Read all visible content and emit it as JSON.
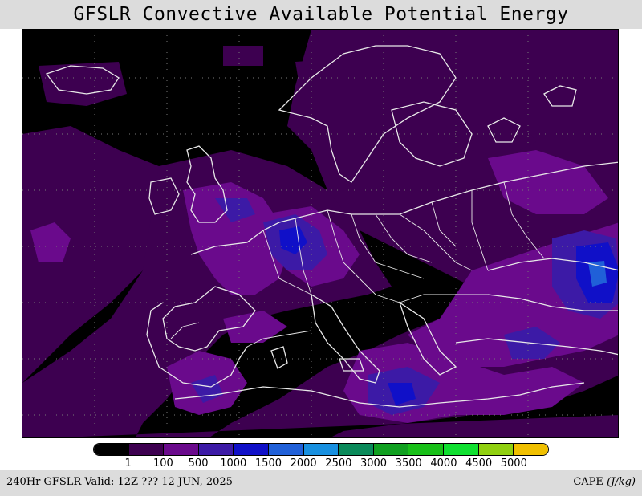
{
  "title": "GFSLR Convective Available Potential Energy",
  "legend": {
    "colors": [
      "#000000",
      "#3d0050",
      "#6a0a8c",
      "#3c1aa6",
      "#1010c8",
      "#2060d8",
      "#1890e0",
      "#0a8a5a",
      "#10a020",
      "#18c018",
      "#10e030",
      "#90d010",
      "#f0c000"
    ],
    "labels": [
      "1",
      "100",
      "500",
      "1000",
      "1500",
      "2000",
      "2500",
      "3000",
      "3500",
      "4000",
      "4500",
      "5000"
    ]
  },
  "footer": {
    "left": "240Hr GFSLR Valid: 12Z ??? 12 JUN, 2025",
    "right_name": "CAPE",
    "right_unit": "(J/kg)"
  },
  "colors": {
    "ocean": "#000000",
    "low": "#3d0050",
    "mid": "#6a0a8c",
    "high": "#3c1aa6",
    "vhigh": "#1010c8",
    "peak": "#2060d8",
    "coast": "#e8e8e8"
  }
}
